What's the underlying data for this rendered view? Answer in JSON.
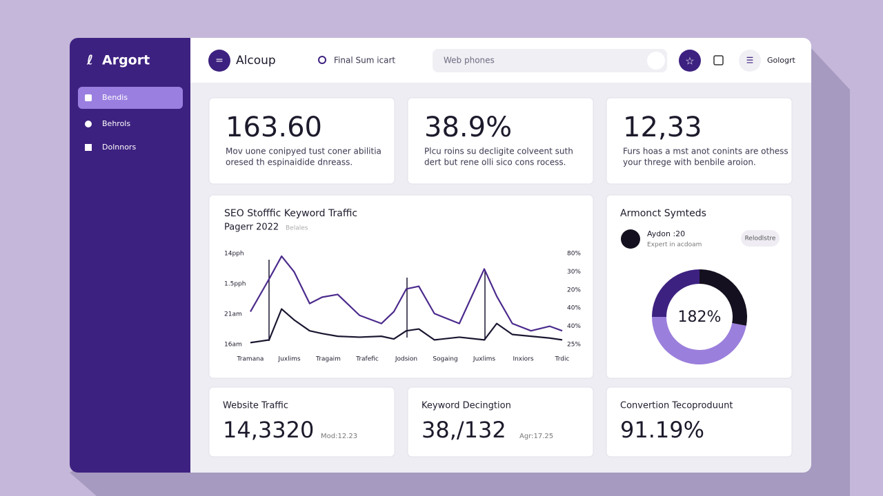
{
  "sidebar": {
    "brand": "Argort",
    "nav": [
      "Bendis",
      "Behrols",
      "Dolnnors"
    ]
  },
  "header": {
    "title": "Alcoup",
    "link": "Final Sum icart",
    "search_placeholder": "Web phones",
    "user": "Gologrt"
  },
  "stats": [
    {
      "value": "163.60",
      "lines": [
        "Mov uone conipyed tust coner abilitia",
        "oresed th espinaidide dnreass."
      ]
    },
    {
      "value": "38.9%",
      "lines": [
        "Plcu roins su decligite colveent suth",
        "dert but rene olli sico cons rocess."
      ]
    },
    {
      "value": "12,33",
      "lines": [
        "Furs hoas a mst anot conints are othess",
        "your threge with benbile aroion."
      ]
    }
  ],
  "chart": {
    "type": "line",
    "title": "SEO Stofffic Keyword Traffic",
    "subtitle": "Pagerr 2022",
    "tag": "Belales",
    "categories": [
      "Tramana",
      "Juxlims",
      "Tragaim",
      "Trafefic",
      "Jodsion",
      "Sogaing",
      "Juxlims",
      "Inxiors",
      "Trdic"
    ],
    "left_labels": [
      "14pph",
      "1.5pph",
      "21am",
      "16am"
    ],
    "right_labels": [
      "80%",
      "30%",
      "20%",
      "40%",
      "40%",
      "25%"
    ],
    "xlim": [
      0,
      100
    ],
    "ylim": [
      0,
      100
    ],
    "x": [
      0,
      6,
      10,
      14,
      19,
      23,
      28,
      35,
      42,
      46,
      50,
      54,
      59,
      67,
      75,
      79,
      84,
      90,
      96,
      100
    ],
    "series": [
      {
        "color": "#4b2a8c",
        "values": [
          36,
          72,
          97,
          80,
          45,
          52,
          55,
          32,
          23,
          36,
          61,
          64,
          34,
          23,
          83,
          53,
          23,
          15,
          20,
          15
        ]
      },
      {
        "color": "#1a1630",
        "values": [
          2,
          5,
          39,
          27,
          15,
          12,
          9,
          8,
          9,
          6,
          15,
          17,
          5,
          8,
          5,
          23,
          11,
          9,
          7,
          5
        ]
      }
    ]
  },
  "donut": {
    "title": "Armonct Symteds",
    "person": "Aydon :20",
    "role": "Expert in acdoam",
    "button": "Relodlstre",
    "center": "182%",
    "values": [
      28,
      47,
      25
    ],
    "colors": [
      "#15101f",
      "#9b7fdc",
      "#3d2180"
    ]
  },
  "metrics": [
    {
      "title": "Website Traffic",
      "value": "14,3320",
      "note": "Mod:12.23"
    },
    {
      "title": "Keyword Decingtion",
      "value": "38,/132",
      "note": "Agr:17.25"
    },
    {
      "title": "Convertion Tecoproduunt",
      "value": "91.19%"
    }
  ]
}
